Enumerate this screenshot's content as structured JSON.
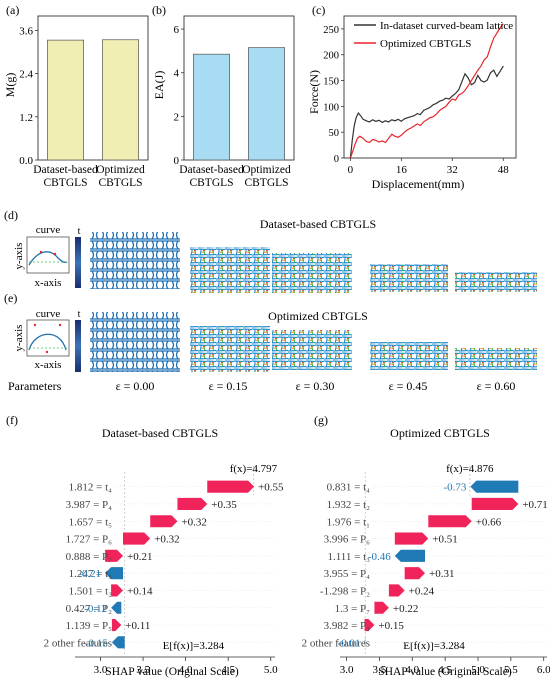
{
  "panel_labels": {
    "a": "(a)",
    "b": "(b)",
    "c": "(c)",
    "d": "(d)",
    "e": "(e)",
    "f": "(f)",
    "g": "(g)"
  },
  "colors": {
    "bar_mass": "#f1eeb4",
    "bar_ea": "#a7dcf2",
    "dataset_line": "#333333",
    "optimized_line": "#e8262e",
    "shap_positive": "#f0245a",
    "shap_negative": "#1f7ab5",
    "lattice_blue": "#1f6fb2",
    "colorbar_dark": "#1a2d6e",
    "colorbar_light": "#6fa8d8"
  },
  "section_titles": {
    "d": "Dataset-based CBTGLS",
    "e": "Optimized CBTGLS"
  },
  "inset": {
    "title": "curve",
    "xlabel": "x-axis",
    "ylabel": "y-axis",
    "colorbar_label": "t"
  },
  "strain_row": {
    "label": "Parameters",
    "values": [
      "ε = 0.00",
      "ε = 0.15",
      "ε = 0.30",
      "ε = 0.45",
      "ε = 0.60"
    ]
  },
  "chart_data": [
    {
      "id": "a",
      "type": "bar",
      "categories": [
        [
          "Dataset-based",
          "CBTGLS"
        ],
        [
          "Optimized",
          "CBTGLS"
        ]
      ],
      "values": [
        3.33,
        3.34
      ],
      "ylabel": "M(g)",
      "yticks": [
        "0.0",
        "1.2",
        "2.4",
        "3.6"
      ],
      "ylim": [
        0,
        4.0
      ]
    },
    {
      "id": "b",
      "type": "bar",
      "categories": [
        [
          "Dataset-based",
          "CBTGLS"
        ],
        [
          "Optimized",
          "CBTGLS"
        ]
      ],
      "values": [
        4.85,
        5.15
      ],
      "ylabel": "EA(J)",
      "yticks": [
        "0",
        "2",
        "4",
        "6"
      ],
      "ylim": [
        0,
        6.6
      ]
    },
    {
      "id": "c",
      "type": "line",
      "xlabel": "Displacement(mm)",
      "ylabel": "Force(N)",
      "xticks": [
        "0",
        "16",
        "32",
        "48"
      ],
      "yticks": [
        "0",
        "50",
        "100",
        "150",
        "200",
        "250"
      ],
      "xlim": [
        -2,
        52
      ],
      "ylim": [
        0,
        275
      ],
      "legend": "top-left",
      "series": [
        {
          "name": "In-dataset curved-beam lattice",
          "x": [
            0,
            0.6,
            1.2,
            1.8,
            2.5,
            3.2,
            4,
            5,
            6,
            7,
            8,
            9,
            10,
            11,
            12,
            13,
            14,
            15,
            16,
            17,
            18,
            19,
            20,
            21,
            22,
            23,
            24,
            25,
            26,
            27,
            28,
            29,
            30,
            31,
            32,
            33,
            34,
            35,
            36,
            37,
            38,
            39,
            40,
            41,
            42,
            43,
            44,
            45,
            46,
            47,
            48
          ],
          "y": [
            0,
            35,
            62,
            78,
            87,
            82,
            75,
            72,
            70,
            74,
            71,
            73,
            69,
            72,
            70,
            74,
            72,
            75,
            71,
            76,
            78,
            80,
            82,
            86,
            84,
            92,
            95,
            98,
            103,
            106,
            110,
            112,
            116,
            114,
            120,
            125,
            132,
            148,
            163,
            155,
            142,
            146,
            160,
            150,
            147,
            151,
            165,
            170,
            158,
            168,
            178
          ]
        },
        {
          "name": "Optimized CBTGLS",
          "x": [
            0,
            0.8,
            1.5,
            2.2,
            3,
            4,
            5,
            6,
            7,
            8,
            9,
            10,
            11,
            12,
            13,
            14,
            15,
            16,
            17,
            18,
            19,
            20,
            21,
            22,
            23,
            24,
            25,
            26,
            27,
            28,
            29,
            30,
            31,
            32,
            33,
            34,
            35,
            36,
            37,
            38,
            39,
            40,
            41,
            42,
            43,
            44,
            45,
            46,
            47,
            48
          ],
          "y": [
            0,
            14,
            27,
            38,
            42,
            38,
            32,
            30,
            36,
            34,
            31,
            33,
            30,
            38,
            46,
            42,
            40,
            44,
            50,
            55,
            58,
            62,
            66,
            63,
            70,
            74,
            78,
            80,
            85,
            92,
            96,
            100,
            108,
            114,
            112,
            122,
            125,
            131,
            140,
            150,
            160,
            170,
            178,
            190,
            196,
            215,
            232,
            242,
            252,
            260
          ]
        }
      ]
    },
    {
      "id": "f",
      "type": "waterfall",
      "title": "Dataset-based CBTGLS",
      "xlabel": "SHAP value (Original Scale)",
      "xticks": [
        "3.0",
        "3.5",
        "4.0",
        "4.5",
        "5.0"
      ],
      "xlim": [
        2.7,
        5.05
      ],
      "base_value": 3.284,
      "fx": 4.797,
      "fx_label": "f(x)=4.797",
      "base_label": "E[f(x)]=3.284",
      "features": [
        {
          "label": "1.812 = t₄",
          "value": 0.55,
          "text": "+0.55"
        },
        {
          "label": "3.987 = P₄",
          "value": 0.35,
          "text": "+0.35"
        },
        {
          "label": "1.657 = t₅",
          "value": 0.32,
          "text": "+0.32"
        },
        {
          "label": "1.727 = P₆",
          "value": 0.32,
          "text": "+0.32"
        },
        {
          "label": "0.888 = P₇",
          "value": 0.21,
          "text": "+0.21"
        },
        {
          "label": "1.247 = t₃",
          "value": -0.21,
          "text": "-0.21"
        },
        {
          "label": "1.501 = t₂",
          "value": 0.14,
          "text": "+0.14"
        },
        {
          "label": "0.427 = P₂",
          "value": -0.12,
          "text": "-0.12"
        },
        {
          "label": "1.139 = P₅",
          "value": 0.11,
          "text": "+0.11"
        },
        {
          "label": "2 other features",
          "value": -0.15,
          "text": "-0.15"
        }
      ]
    },
    {
      "id": "g",
      "type": "waterfall",
      "title": "Optimized CBTGLS",
      "xlabel": "SHAP value (Original Scale)",
      "xticks": [
        "3.0",
        "3.5",
        "4.0",
        "4.5",
        "5.0",
        "5.5",
        "6.0"
      ],
      "xlim": [
        2.9,
        6.05
      ],
      "base_value": 3.284,
      "fx": 4.876,
      "fx_label": "f(x)=4.876",
      "base_label": "E[f(x)]=3.284",
      "features": [
        {
          "label": "0.831 = t₄",
          "value": -0.73,
          "text": "-0.73"
        },
        {
          "label": "1.932 = t₂",
          "value": 0.71,
          "text": "+0.71"
        },
        {
          "label": "1.976 = t₁",
          "value": 0.66,
          "text": "+0.66"
        },
        {
          "label": "3.996 = P₆",
          "value": 0.51,
          "text": "+0.51"
        },
        {
          "label": "1.111 = t₃",
          "value": -0.46,
          "text": "-0.46"
        },
        {
          "label": "3.955 = P₄",
          "value": 0.31,
          "text": "+0.31"
        },
        {
          "label": "-1.298 = P₂",
          "value": 0.24,
          "text": "+0.24"
        },
        {
          "label": "1.3 = P₇",
          "value": 0.22,
          "text": "+0.22"
        },
        {
          "label": "3.982 = P₃",
          "value": 0.15,
          "text": "+0.15"
        },
        {
          "label": "2 other features",
          "value": -0.01,
          "text": "-0.01"
        }
      ]
    }
  ]
}
